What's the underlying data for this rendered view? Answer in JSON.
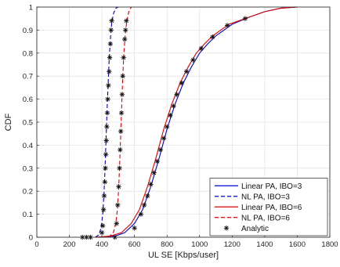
{
  "chart_data": {
    "type": "line",
    "xlabel": "UL SE [Kbps/user]",
    "ylabel": "CDF",
    "xlim": [
      0,
      1800
    ],
    "ylim": [
      0,
      1
    ],
    "x_ticks": [
      0,
      200,
      400,
      600,
      800,
      1000,
      1200,
      1400,
      1600,
      1800
    ],
    "y_ticks": [
      0,
      0.1,
      0.2,
      0.3,
      0.4,
      0.5,
      0.6,
      0.7,
      0.8,
      0.9,
      1
    ],
    "grid": true,
    "legend_position": "bottom-right",
    "series": [
      {
        "name": "Linear PA, IBO=3",
        "color": "#0000cc",
        "style": "solid",
        "points": [
          [
            380,
            0
          ],
          [
            480,
            0.005
          ],
          [
            540,
            0.02
          ],
          [
            600,
            0.06
          ],
          [
            650,
            0.12
          ],
          [
            700,
            0.22
          ],
          [
            750,
            0.34
          ],
          [
            800,
            0.47
          ],
          [
            850,
            0.58
          ],
          [
            900,
            0.67
          ],
          [
            950,
            0.74
          ],
          [
            1000,
            0.8
          ],
          [
            1050,
            0.84
          ],
          [
            1100,
            0.875
          ],
          [
            1150,
            0.9
          ],
          [
            1200,
            0.925
          ],
          [
            1250,
            0.94
          ],
          [
            1300,
            0.955
          ],
          [
            1400,
            0.98
          ],
          [
            1500,
            0.995
          ],
          [
            1600,
            1
          ]
        ]
      },
      {
        "name": "NL PA, IBO=3",
        "color": "#0000cc",
        "style": "dashed",
        "points": [
          [
            360,
            0
          ],
          [
            380,
            0.01
          ],
          [
            395,
            0.04
          ],
          [
            405,
            0.1
          ],
          [
            412,
            0.18
          ],
          [
            418,
            0.28
          ],
          [
            423,
            0.38
          ],
          [
            428,
            0.48
          ],
          [
            433,
            0.58
          ],
          [
            439,
            0.68
          ],
          [
            445,
            0.78
          ],
          [
            452,
            0.86
          ],
          [
            460,
            0.93
          ],
          [
            470,
            0.97
          ],
          [
            485,
            0.995
          ],
          [
            500,
            1
          ]
        ]
      },
      {
        "name": "Linear PA, IBO=6",
        "color": "#dd0000",
        "style": "solid",
        "points": [
          [
            360,
            0
          ],
          [
            450,
            0.005
          ],
          [
            520,
            0.02
          ],
          [
            580,
            0.06
          ],
          [
            630,
            0.12
          ],
          [
            680,
            0.22
          ],
          [
            730,
            0.34
          ],
          [
            780,
            0.47
          ],
          [
            830,
            0.58
          ],
          [
            880,
            0.67
          ],
          [
            930,
            0.74
          ],
          [
            980,
            0.8
          ],
          [
            1030,
            0.84
          ],
          [
            1080,
            0.875
          ],
          [
            1130,
            0.9
          ],
          [
            1180,
            0.925
          ],
          [
            1240,
            0.94
          ],
          [
            1300,
            0.955
          ],
          [
            1400,
            0.98
          ],
          [
            1500,
            0.995
          ],
          [
            1600,
            1
          ]
        ]
      },
      {
        "name": "NL PA, IBO=6",
        "color": "#dd0000",
        "style": "dashed",
        "points": [
          [
            440,
            0
          ],
          [
            470,
            0.02
          ],
          [
            485,
            0.06
          ],
          [
            495,
            0.12
          ],
          [
            502,
            0.2
          ],
          [
            508,
            0.3
          ],
          [
            513,
            0.4
          ],
          [
            518,
            0.5
          ],
          [
            523,
            0.6
          ],
          [
            528,
            0.7
          ],
          [
            535,
            0.8
          ],
          [
            543,
            0.88
          ],
          [
            553,
            0.94
          ],
          [
            565,
            0.98
          ],
          [
            580,
            1
          ]
        ]
      },
      {
        "name": "Analytic",
        "color": "#111111",
        "style": "marker",
        "marker": "*",
        "points": [
          [
            280,
            0
          ],
          [
            305,
            0
          ],
          [
            330,
            0
          ],
          [
            400,
            0.02
          ],
          [
            405,
            0.05
          ],
          [
            410,
            0.12
          ],
          [
            414,
            0.18
          ],
          [
            418,
            0.24
          ],
          [
            421,
            0.3
          ],
          [
            424,
            0.36
          ],
          [
            427,
            0.42
          ],
          [
            430,
            0.48
          ],
          [
            433,
            0.54
          ],
          [
            436,
            0.6
          ],
          [
            440,
            0.66
          ],
          [
            444,
            0.72
          ],
          [
            448,
            0.78
          ],
          [
            452,
            0.84
          ],
          [
            456,
            0.9
          ],
          [
            460,
            0.94
          ],
          [
            480,
            0
          ],
          [
            490,
            0.06
          ],
          [
            497,
            0.14
          ],
          [
            503,
            0.22
          ],
          [
            508,
            0.3
          ],
          [
            512,
            0.38
          ],
          [
            516,
            0.46
          ],
          [
            520,
            0.54
          ],
          [
            524,
            0.62
          ],
          [
            528,
            0.7
          ],
          [
            533,
            0.78
          ],
          [
            540,
            0.86
          ],
          [
            545,
            0.9
          ],
          [
            550,
            0.94
          ],
          [
            600,
            0.04
          ],
          [
            640,
            0.1
          ],
          [
            660,
            0.14
          ],
          [
            680,
            0.18
          ],
          [
            700,
            0.23
          ],
          [
            720,
            0.28
          ],
          [
            740,
            0.33
          ],
          [
            760,
            0.38
          ],
          [
            780,
            0.43
          ],
          [
            800,
            0.48
          ],
          [
            820,
            0.53
          ],
          [
            840,
            0.57
          ],
          [
            860,
            0.62
          ],
          [
            890,
            0.67
          ],
          [
            920,
            0.72
          ],
          [
            960,
            0.77
          ],
          [
            1010,
            0.82
          ],
          [
            1080,
            0.87
          ],
          [
            1170,
            0.92
          ],
          [
            1280,
            0.95
          ]
        ]
      }
    ]
  }
}
